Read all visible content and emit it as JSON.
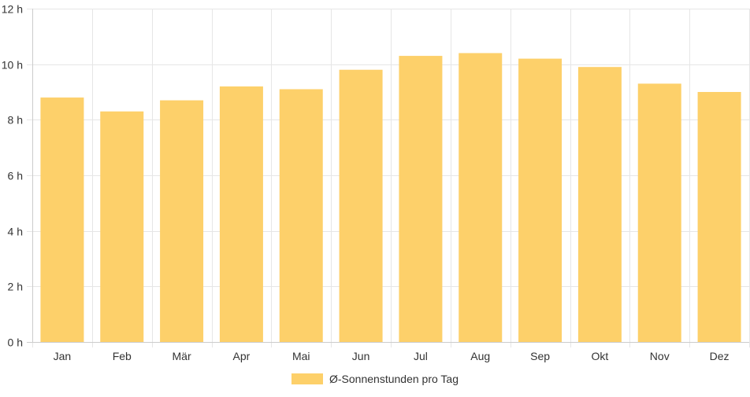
{
  "chart_data": {
    "type": "bar",
    "categories": [
      "Jan",
      "Feb",
      "Mär",
      "Apr",
      "Mai",
      "Jun",
      "Jul",
      "Aug",
      "Sep",
      "Okt",
      "Nov",
      "Dez"
    ],
    "series": [
      {
        "name": "Ø-Sonnenstunden pro Tag",
        "values": [
          8.8,
          8.3,
          8.7,
          9.2,
          9.1,
          9.8,
          10.3,
          10.4,
          10.2,
          9.9,
          9.3,
          9.0
        ],
        "color": "#fdd06a"
      }
    ],
    "yticks": [
      "0 h",
      "2 h",
      "4 h",
      "6 h",
      "8 h",
      "10 h",
      "12 h"
    ],
    "ylim": [
      0,
      12
    ],
    "grid": true,
    "legend_position": "bottom"
  }
}
